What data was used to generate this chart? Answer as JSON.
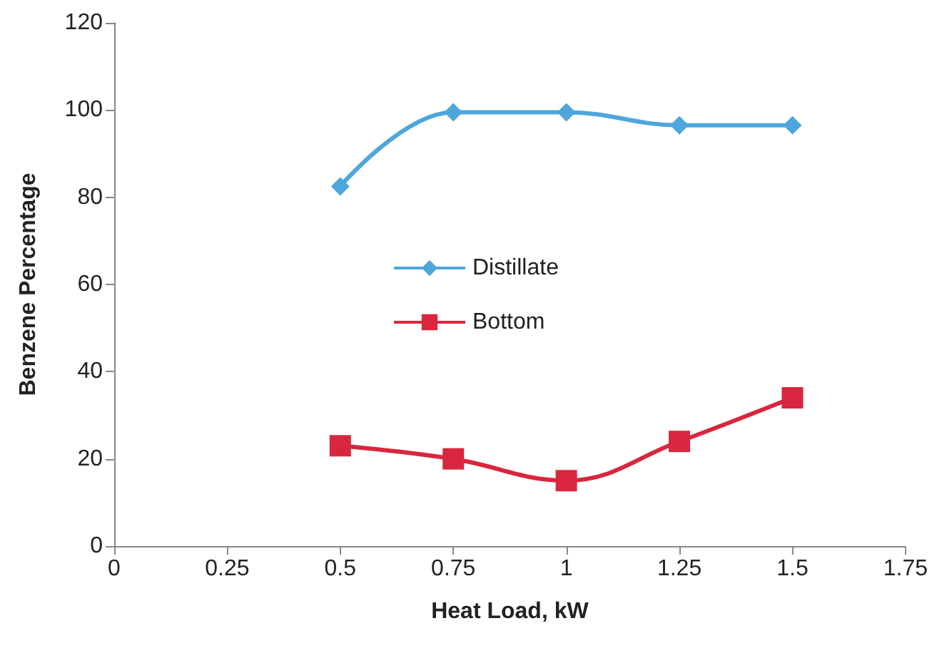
{
  "chart_data": {
    "type": "line",
    "xlabel": "Heat Load, kW",
    "ylabel": "Benzene Percentage",
    "xlim": [
      0,
      1.75
    ],
    "xticks": [
      0,
      0.25,
      0.5,
      0.75,
      1,
      1.25,
      1.5,
      1.75
    ],
    "ylim": [
      0,
      120
    ],
    "yticks": [
      0,
      20,
      40,
      60,
      80,
      100,
      120
    ],
    "x": [
      0.5,
      0.75,
      1,
      1.25,
      1.5
    ],
    "series": [
      {
        "name": "Distillate",
        "color": "#4ea6dc",
        "marker": "diamond",
        "values": [
          82.5,
          99.5,
          99.5,
          96.5,
          96.5
        ]
      },
      {
        "name": "Bottom",
        "color": "#d9263e",
        "marker": "square",
        "values": [
          23,
          20,
          15,
          24,
          34
        ]
      }
    ],
    "grid": false,
    "legend": "center"
  }
}
